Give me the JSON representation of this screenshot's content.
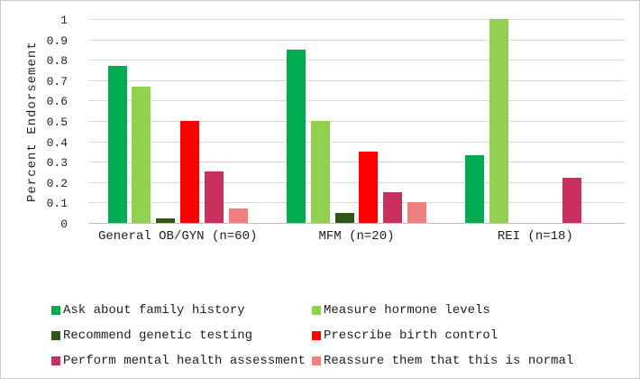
{
  "chart_data": {
    "type": "bar",
    "title": "",
    "xlabel": "",
    "ylabel": "Percent Endorsement",
    "ylim": [
      0,
      1
    ],
    "ytick_labels": [
      "0",
      "0.1",
      "0.2",
      "0.3",
      "0.4",
      "0.5",
      "0.6",
      "0.7",
      "0.8",
      "0.9",
      "1"
    ],
    "grid": true,
    "grid_color": "#d9d9d9",
    "axis_color": "#bfbfbf",
    "legend_position": "bottom",
    "categories": [
      "General OB/GYN (n=60)",
      "MFM (n=20)",
      "REI (n=18)"
    ],
    "series": [
      {
        "name": "Ask about family history",
        "color": "#00AB51",
        "values": [
          0.77,
          0.85,
          0.33
        ]
      },
      {
        "name": "Measure hormone levels",
        "color": "#92D050",
        "values": [
          0.67,
          0.5,
          1.0
        ]
      },
      {
        "name": "Recommend genetic testing",
        "color": "#2F5615",
        "values": [
          0.02,
          0.05,
          0.0
        ]
      },
      {
        "name": "Prescribe birth control",
        "color": "#FF0000",
        "values": [
          0.5,
          0.35,
          0.0
        ]
      },
      {
        "name": "Perform mental health assessment",
        "color": "#C9305E",
        "values": [
          0.25,
          0.15,
          0.22
        ]
      },
      {
        "name": "Reassure them that this is normal",
        "color": "#F08080",
        "values": [
          0.07,
          0.1,
          0.0
        ]
      }
    ]
  }
}
